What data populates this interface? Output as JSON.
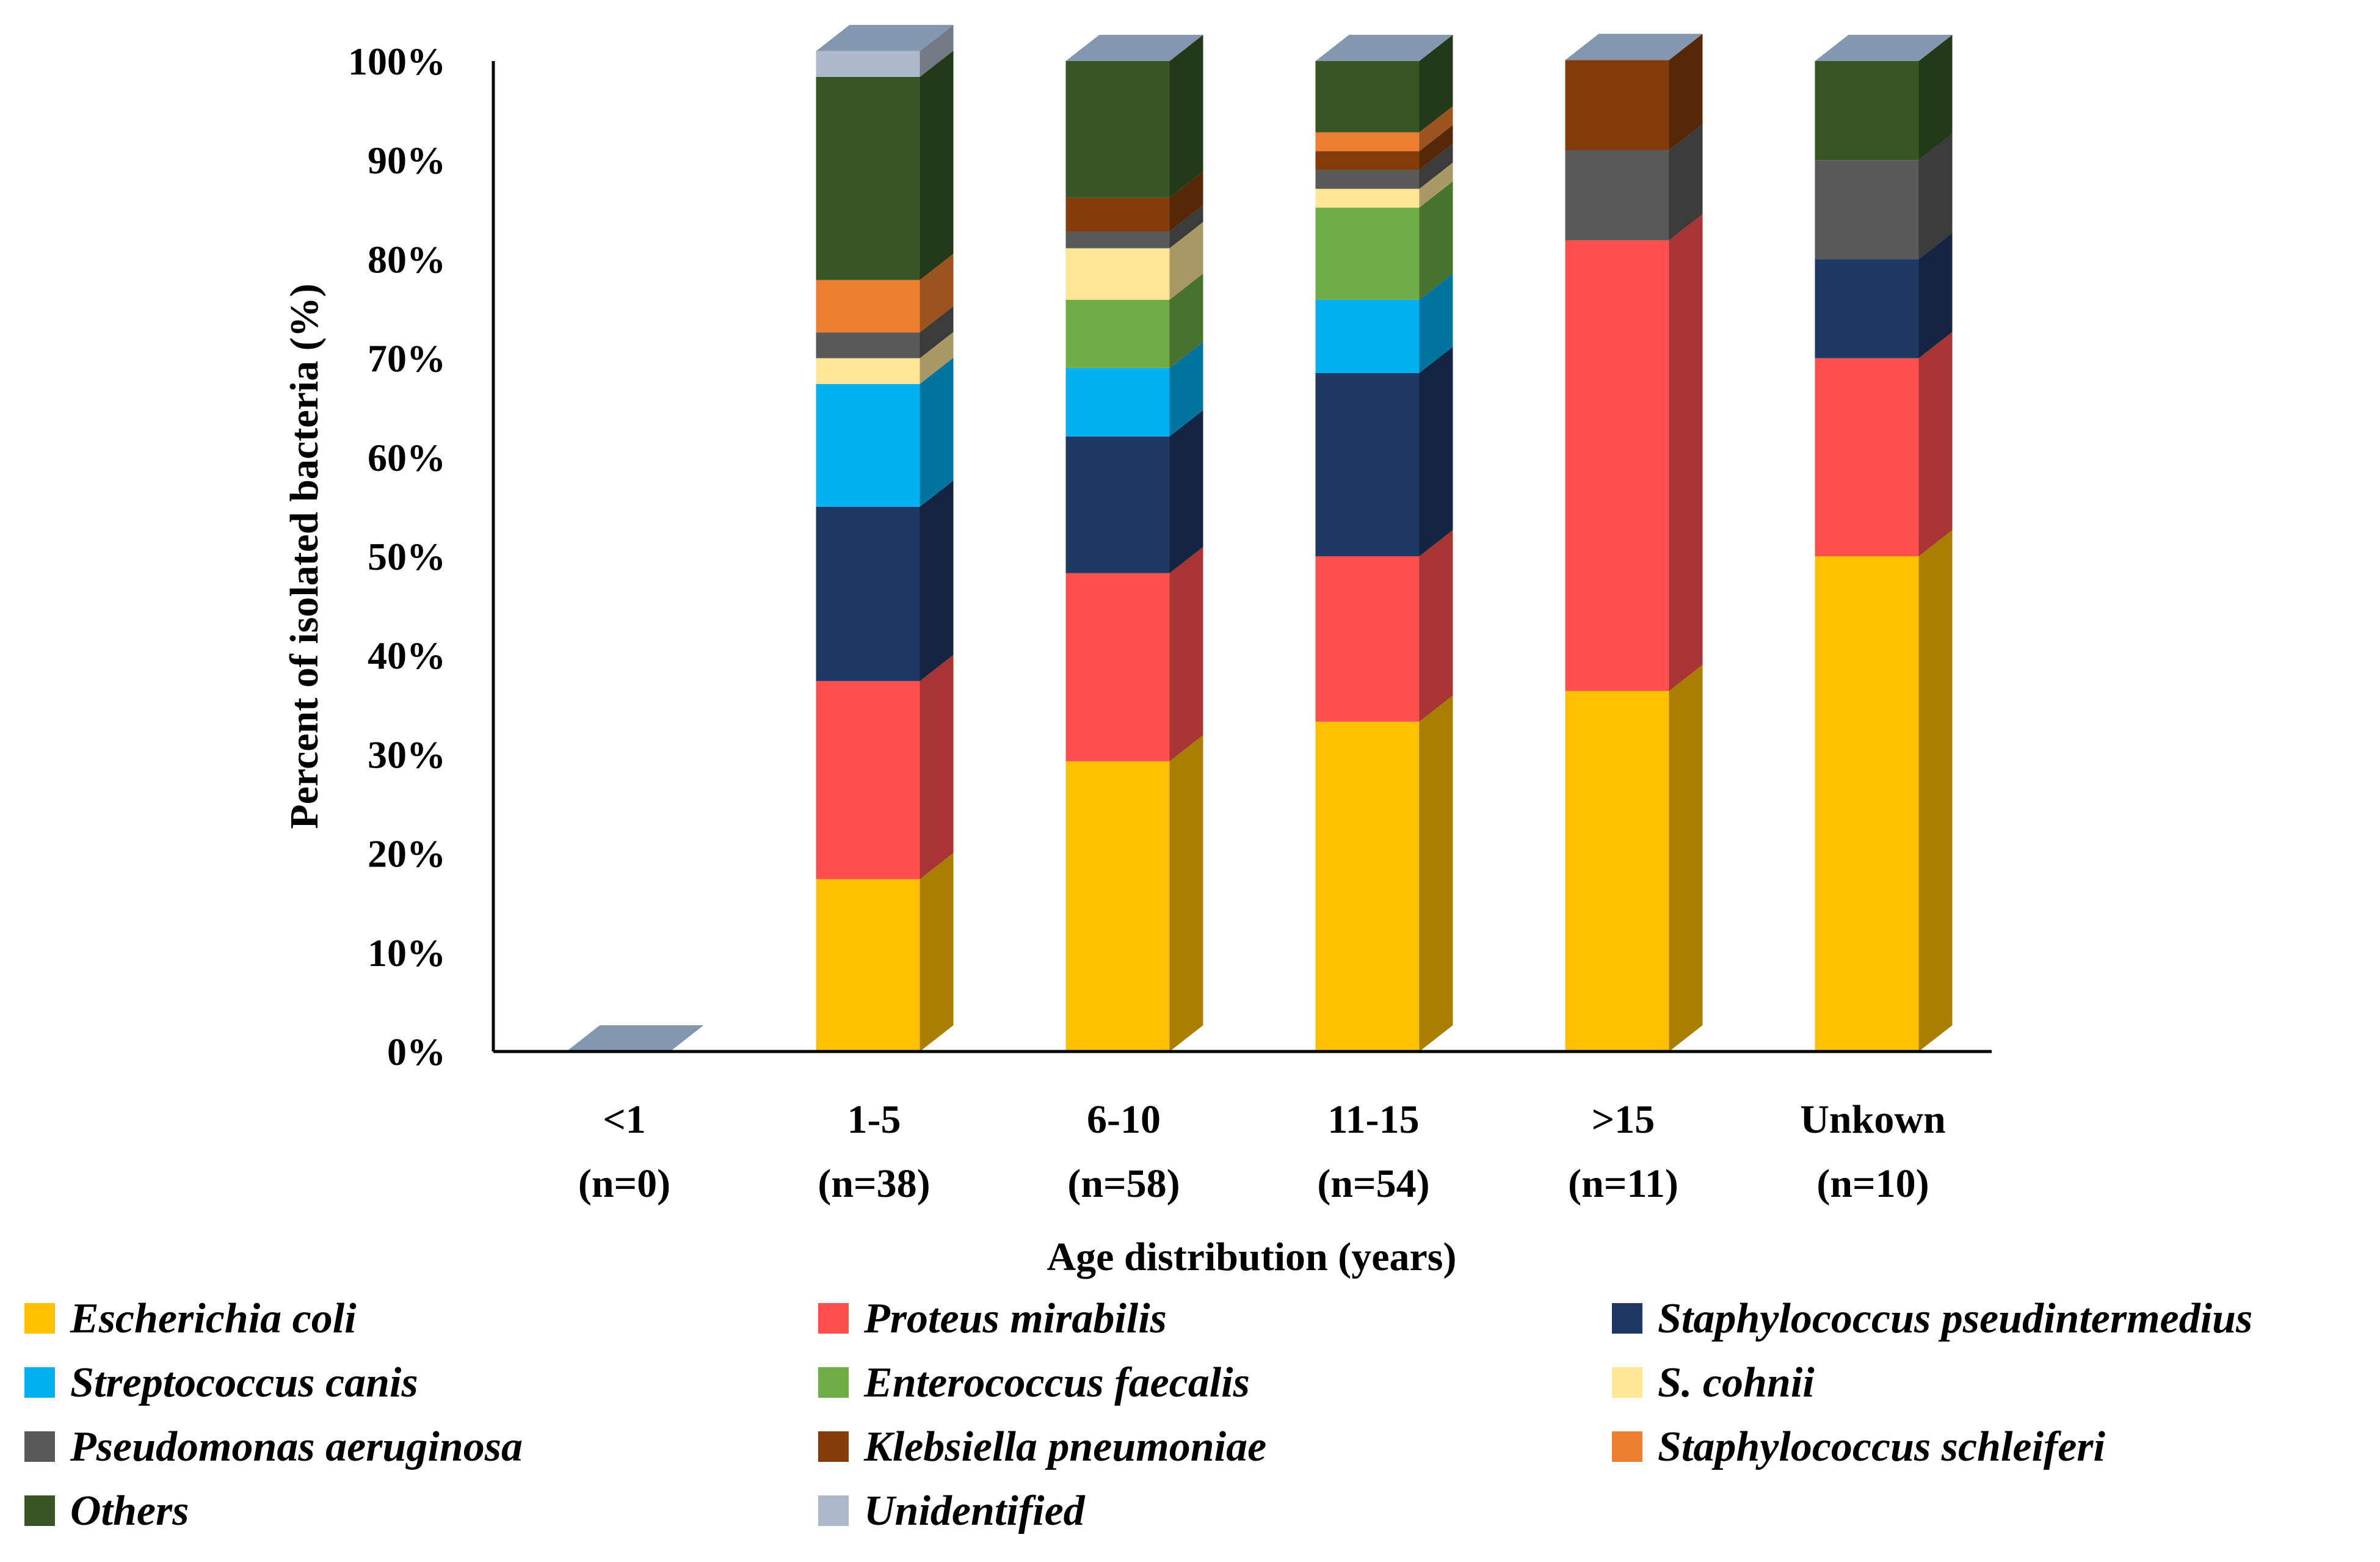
{
  "chart_data": {
    "type": "bar",
    "stacked": true,
    "percent_stacked": true,
    "style": "3d",
    "title": "",
    "xlabel": "Age distribution  (years)",
    "ylabel": "Percent of isolated bacteria (%)",
    "ylim": [
      0,
      100
    ],
    "yticks": [
      "0%",
      "10%",
      "20%",
      "30%",
      "40%",
      "50%",
      "60%",
      "70%",
      "80%",
      "90%",
      "100%"
    ],
    "categories": [
      {
        "label": "<1",
        "n": "(n=0)"
      },
      {
        "label": "1-5",
        "n": "(n=38)"
      },
      {
        "label": "6-10",
        "n": "(n=58)"
      },
      {
        "label": "11-15",
        "n": "(n=54)"
      },
      {
        "label": ">15",
        "n": "(n=11)"
      },
      {
        "label": "Unkown",
        "n": "(n=10)"
      }
    ],
    "series": [
      {
        "name": "Escherichia coli",
        "color": "#FFC000",
        "values": [
          0,
          17.4,
          29.3,
          33.3,
          36.4,
          50.0
        ]
      },
      {
        "name": "Proteus mirabilis",
        "color": "#FF5050",
        "values": [
          0,
          20.0,
          19.0,
          16.7,
          45.5,
          20.0
        ]
      },
      {
        "name": "Staphylococcus pseudintermedius",
        "color": "#1F3864",
        "values": [
          0,
          17.6,
          13.8,
          18.5,
          0,
          10.0
        ]
      },
      {
        "name": "Streptococcus canis",
        "color": "#00B0F0",
        "values": [
          0,
          12.4,
          6.9,
          7.4,
          0,
          0
        ]
      },
      {
        "name": "Enterococcus faecalis",
        "color": "#70AD47",
        "values": [
          0,
          0,
          6.9,
          9.3,
          0,
          0
        ]
      },
      {
        "name": "S. cohnii",
        "color": "#FFE699",
        "values": [
          0,
          2.6,
          5.2,
          1.9,
          0,
          0
        ]
      },
      {
        "name": "Pseudomonas aeruginosa",
        "color": "#595959",
        "values": [
          0,
          2.6,
          1.7,
          1.9,
          9.1,
          10.0
        ]
      },
      {
        "name": "Klebsiella pneumoniae",
        "color": "#843C0C",
        "values": [
          0,
          0,
          3.4,
          1.9,
          9.1,
          0
        ]
      },
      {
        "name": "Staphylococcus schleiferi",
        "color": "#ED7D31",
        "values": [
          0,
          5.3,
          0,
          1.9,
          0,
          0
        ]
      },
      {
        "name": "Others",
        "color": "#375623",
        "values": [
          0,
          20.5,
          13.8,
          7.2,
          0,
          10.0
        ]
      },
      {
        "name": "Unidentified",
        "color": "#ADB9CA",
        "values": [
          0,
          2.6,
          0,
          0,
          0,
          0
        ]
      }
    ],
    "legend_position": "bottom",
    "top_cap_color": "#8497B0"
  }
}
